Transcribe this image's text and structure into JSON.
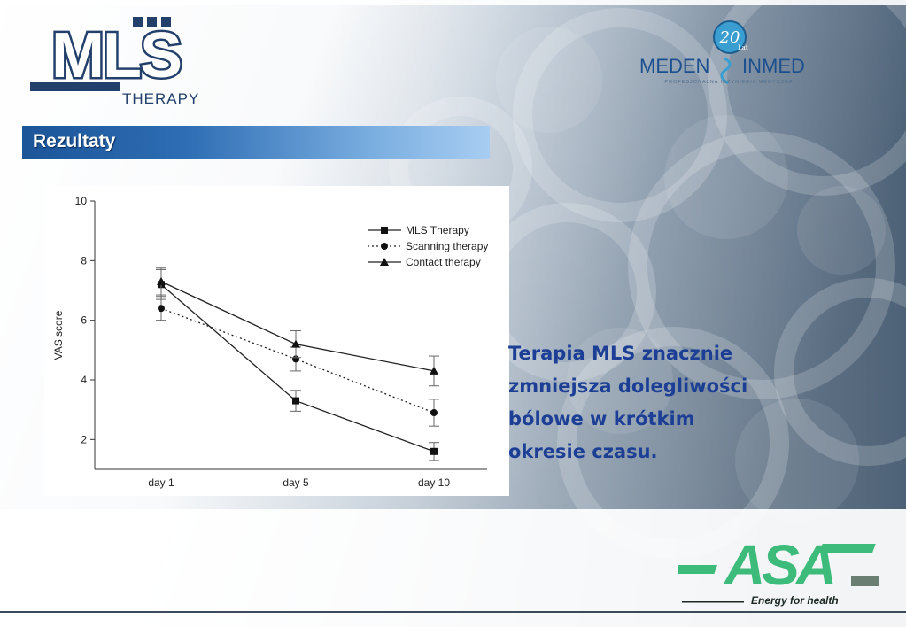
{
  "header": {
    "mls_logo": {
      "text": "MLS",
      "subtitle": "THERAPY"
    },
    "meden_logo": {
      "text_left": "MEDEN",
      "text_right": "INMED",
      "badge": "20",
      "badge_sub": "Lat",
      "tagline": "PROFESJONALNA INŻYNIERIA MEDYCZNA"
    }
  },
  "section": {
    "title": "Rezultaty"
  },
  "claim": {
    "lines": [
      "Terapia MLS znacznie",
      "zmniejsza dolegliwości",
      "bólowe w krótkim",
      "okresie czasu."
    ]
  },
  "footer": {
    "asa_logo": {
      "text": "ASA",
      "tagline": "Energy for health"
    }
  },
  "colors": {
    "bar_dark": "#1c5598",
    "bar_light": "#a8cdf2",
    "claim_text": "#1c3f95",
    "asa_green": "#3dbb7a"
  },
  "chart_data": {
    "type": "line",
    "categories": [
      "day 1",
      "day 5",
      "day 10"
    ],
    "ylabel": "VAS score",
    "xlabel": "",
    "ylim": [
      1,
      10
    ],
    "yticks": [
      2,
      4,
      6,
      8,
      10
    ],
    "legend_position": "top-right",
    "grid": false,
    "series": [
      {
        "name": "MLS Therapy",
        "marker": "square",
        "dash": "solid",
        "values": [
          7.2,
          3.3,
          1.6
        ],
        "error": [
          0.5,
          0.35,
          0.3
        ]
      },
      {
        "name": "Scanning therapy",
        "marker": "circle",
        "dash": "dotted",
        "values": [
          6.4,
          4.7,
          2.9
        ],
        "error": [
          0.4,
          0.4,
          0.45
        ]
      },
      {
        "name": "Contact therapy",
        "marker": "triangle",
        "dash": "solid",
        "values": [
          7.3,
          5.2,
          4.3
        ],
        "error": [
          0.45,
          0.45,
          0.5
        ]
      }
    ]
  }
}
